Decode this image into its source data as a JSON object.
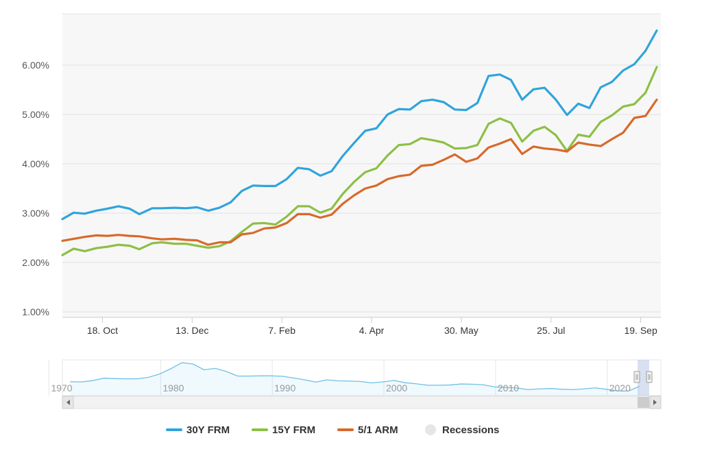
{
  "chart_data": {
    "type": "line",
    "title": "",
    "xlabel": "",
    "ylabel": "",
    "ylim": [
      1.0,
      7.0
    ],
    "y_ticks": [
      "1.00%",
      "2.00%",
      "3.00%",
      "4.00%",
      "5.00%",
      "6.00%"
    ],
    "x_ticks": [
      "18. Oct",
      "13. Dec",
      "7. Feb",
      "4. Apr",
      "30. May",
      "25. Jul",
      "19. Sep"
    ],
    "x": [
      "2021-09-23",
      "2021-09-30",
      "2021-10-07",
      "2021-10-14",
      "2021-10-21",
      "2021-10-28",
      "2021-11-04",
      "2021-11-10",
      "2021-11-18",
      "2021-11-24",
      "2021-12-02",
      "2021-12-09",
      "2021-12-16",
      "2021-12-23",
      "2021-12-30",
      "2022-01-06",
      "2022-01-13",
      "2022-01-20",
      "2022-01-27",
      "2022-02-03",
      "2022-02-10",
      "2022-02-17",
      "2022-02-24",
      "2022-03-03",
      "2022-03-10",
      "2022-03-17",
      "2022-03-24",
      "2022-03-31",
      "2022-04-07",
      "2022-04-14",
      "2022-04-21",
      "2022-04-28",
      "2022-05-05",
      "2022-05-12",
      "2022-05-19",
      "2022-05-26",
      "2022-06-02",
      "2022-06-09",
      "2022-06-16",
      "2022-06-23",
      "2022-06-30",
      "2022-07-07",
      "2022-07-14",
      "2022-07-21",
      "2022-07-28",
      "2022-08-04",
      "2022-08-11",
      "2022-08-18",
      "2022-08-25",
      "2022-09-01",
      "2022-09-08",
      "2022-09-15",
      "2022-09-22",
      "2022-09-29"
    ],
    "series": [
      {
        "name": "30Y FRM",
        "color": "#2fa4dc",
        "values": [
          2.88,
          3.01,
          2.99,
          3.05,
          3.09,
          3.14,
          3.09,
          2.98,
          3.1,
          3.1,
          3.11,
          3.1,
          3.12,
          3.05,
          3.11,
          3.22,
          3.45,
          3.56,
          3.55,
          3.55,
          3.69,
          3.92,
          3.89,
          3.76,
          3.85,
          4.16,
          4.42,
          4.67,
          4.72,
          5.0,
          5.11,
          5.1,
          5.27,
          5.3,
          5.25,
          5.1,
          5.09,
          5.23,
          5.78,
          5.81,
          5.7,
          5.3,
          5.51,
          5.54,
          5.3,
          4.99,
          5.22,
          5.13,
          5.55,
          5.66,
          5.89,
          6.02,
          6.29,
          6.7
        ]
      },
      {
        "name": "15Y FRM",
        "color": "#8dbf45",
        "values": [
          2.15,
          2.28,
          2.23,
          2.29,
          2.32,
          2.36,
          2.34,
          2.27,
          2.39,
          2.41,
          2.38,
          2.38,
          2.34,
          2.3,
          2.33,
          2.43,
          2.62,
          2.79,
          2.8,
          2.77,
          2.93,
          3.14,
          3.14,
          3.01,
          3.09,
          3.39,
          3.63,
          3.83,
          3.91,
          4.17,
          4.38,
          4.4,
          4.52,
          4.48,
          4.43,
          4.31,
          4.32,
          4.38,
          4.81,
          4.92,
          4.83,
          4.45,
          4.67,
          4.75,
          4.58,
          4.26,
          4.59,
          4.55,
          4.85,
          4.98,
          5.16,
          5.21,
          5.44,
          5.96
        ]
      },
      {
        "name": "5/1 ARM",
        "color": "#d8692a",
        "values": [
          2.44,
          2.48,
          2.52,
          2.55,
          2.54,
          2.56,
          2.54,
          2.53,
          2.49,
          2.47,
          2.48,
          2.46,
          2.45,
          2.36,
          2.41,
          2.41,
          2.57,
          2.6,
          2.69,
          2.71,
          2.8,
          2.98,
          2.98,
          2.91,
          2.97,
          3.19,
          3.36,
          3.5,
          3.56,
          3.69,
          3.75,
          3.78,
          3.96,
          3.98,
          4.08,
          4.19,
          4.04,
          4.11,
          4.33,
          4.41,
          4.5,
          4.2,
          4.35,
          4.31,
          4.29,
          4.25,
          4.43,
          4.39,
          4.36,
          4.5,
          4.63,
          4.93,
          4.97,
          5.3
        ]
      }
    ],
    "navigator": {
      "x_ticks": [
        "1970",
        "1980",
        "1990",
        "2000",
        "2010",
        "2020"
      ],
      "years": [
        1971,
        1972,
        1973,
        1974,
        1975,
        1976,
        1977,
        1978,
        1979,
        1980,
        1981,
        1982,
        1983,
        1984,
        1985,
        1986,
        1987,
        1988,
        1989,
        1990,
        1991,
        1992,
        1993,
        1994,
        1995,
        1996,
        1997,
        1998,
        1999,
        2000,
        2001,
        2002,
        2003,
        2004,
        2005,
        2006,
        2007,
        2008,
        2009,
        2010,
        2011,
        2012,
        2013,
        2014,
        2015,
        2016,
        2017,
        2018,
        2019,
        2020,
        2021,
        2022
      ],
      "values": [
        7.5,
        7.4,
        8.0,
        9.2,
        9.0,
        8.9,
        8.9,
        9.6,
        11.2,
        13.7,
        16.6,
        16.0,
        13.2,
        13.9,
        12.4,
        10.2,
        10.2,
        10.3,
        10.3,
        10.1,
        9.3,
        8.4,
        7.3,
        8.4,
        7.9,
        7.8,
        7.6,
        6.9,
        7.4,
        8.1,
        7.0,
        6.5,
        5.8,
        5.8,
        5.9,
        6.4,
        6.3,
        6.0,
        5.0,
        4.7,
        4.5,
        3.7,
        4.0,
        4.2,
        3.9,
        3.7,
        4.0,
        4.5,
        3.9,
        3.1,
        3.0,
        5.3
      ]
    },
    "legend": {
      "placement": "bottom-center",
      "items": [
        "30Y FRM",
        "15Y FRM",
        "5/1 ARM",
        "Recessions"
      ]
    },
    "grid": true
  }
}
